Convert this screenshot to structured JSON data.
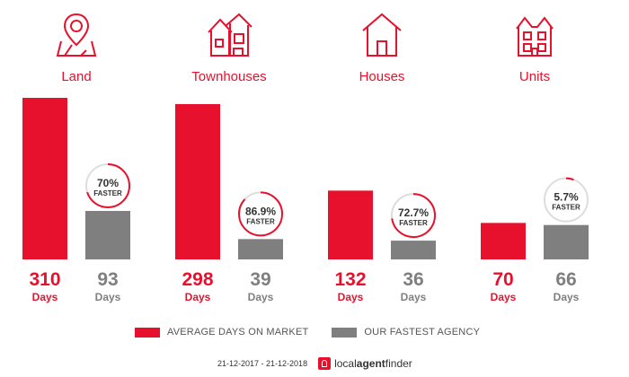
{
  "chart_data": {
    "type": "bar",
    "categories": [
      "Land",
      "Townhouses",
      "Houses",
      "Units"
    ],
    "icons": [
      "map-pin-icon",
      "townhouses-icon",
      "house-icon",
      "units-icon"
    ],
    "series": [
      {
        "name": "AVERAGE DAYS ON MARKET",
        "values": [
          310,
          298,
          132,
          70
        ],
        "color": "#e8112d"
      },
      {
        "name": "OUR FASTEST AGENCY",
        "values": [
          93,
          39,
          36,
          66
        ],
        "color": "#7f7f7f"
      }
    ],
    "value_unit": "Days",
    "faster_pct": [
      "70%",
      "86.9%",
      "72.7%",
      "5.7%"
    ],
    "faster_fraction": [
      0.7,
      0.869,
      0.727,
      0.057
    ],
    "faster_label": "FASTER",
    "ylim": [
      0,
      310
    ]
  },
  "legend": {
    "avg_label": "AVERAGE DAYS ON MARKET",
    "fast_label": "OUR FASTEST AGENCY"
  },
  "footer": {
    "date_range": "21-12-2017 - 21-12-2018",
    "brand_local": "local",
    "brand_agent": "agent",
    "brand_finder": "finder"
  },
  "colors": {
    "accent": "#e8112d",
    "gray": "#7f7f7f",
    "ring_bg": "#dddddd"
  }
}
